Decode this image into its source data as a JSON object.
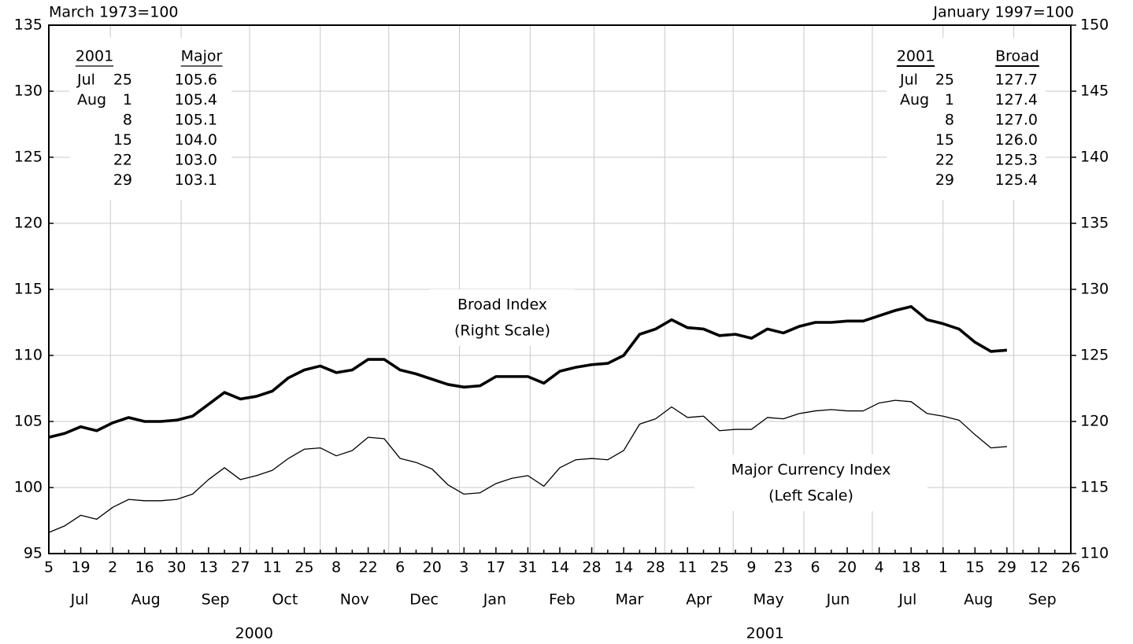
{
  "chart_data": {
    "type": "line",
    "y_unit_label": "March 1973=100",
    "y2_unit_label": "January 1997=100",
    "x": [
      "2000-07-05",
      "2000-07-12",
      "2000-07-19",
      "2000-07-26",
      "2000-08-02",
      "2000-08-09",
      "2000-08-16",
      "2000-08-23",
      "2000-08-30",
      "2000-09-06",
      "2000-09-13",
      "2000-09-20",
      "2000-09-27",
      "2000-10-04",
      "2000-10-11",
      "2000-10-18",
      "2000-10-25",
      "2000-11-01",
      "2000-11-08",
      "2000-11-15",
      "2000-11-22",
      "2000-11-29",
      "2000-12-06",
      "2000-12-13",
      "2000-12-20",
      "2000-12-27",
      "2001-01-03",
      "2001-01-10",
      "2001-01-17",
      "2001-01-24",
      "2001-01-31",
      "2001-02-07",
      "2001-02-14",
      "2001-02-21",
      "2001-02-28",
      "2001-03-07",
      "2001-03-14",
      "2001-03-21",
      "2001-03-28",
      "2001-04-04",
      "2001-04-11",
      "2001-04-18",
      "2001-04-25",
      "2001-05-02",
      "2001-05-09",
      "2001-05-16",
      "2001-05-23",
      "2001-05-30",
      "2001-06-06",
      "2001-06-13",
      "2001-06-20",
      "2001-06-27",
      "2001-07-04",
      "2001-07-11",
      "2001-07-18",
      "2001-07-25",
      "2001-08-01",
      "2001-08-08",
      "2001-08-15",
      "2001-08-22",
      "2001-08-29"
    ],
    "series": [
      {
        "name": "Major Currency Index",
        "axis": "y",
        "color": "#000000",
        "values": [
          96.6,
          97.1,
          97.9,
          97.6,
          98.5,
          99.1,
          99.0,
          99.0,
          99.1,
          99.5,
          100.6,
          101.5,
          100.6,
          100.9,
          101.3,
          102.2,
          102.9,
          103.0,
          102.4,
          102.8,
          103.8,
          103.7,
          102.2,
          101.9,
          101.4,
          100.2,
          99.5,
          99.6,
          100.3,
          100.7,
          100.9,
          100.1,
          101.5,
          102.1,
          102.2,
          102.1,
          102.8,
          104.8,
          105.2,
          106.1,
          105.3,
          105.4,
          104.3,
          104.4,
          104.4,
          105.3,
          105.2,
          105.6,
          105.8,
          105.9,
          105.8,
          105.8,
          106.4,
          106.6,
          106.5,
          105.6,
          105.4,
          105.1,
          104.0,
          103.0,
          103.1
        ]
      },
      {
        "name": "Broad Index",
        "axis": "y2",
        "color": "#000000",
        "values": [
          118.8,
          119.1,
          119.6,
          119.3,
          119.9,
          120.3,
          120.0,
          120.0,
          120.1,
          120.4,
          121.3,
          122.2,
          121.7,
          121.9,
          122.3,
          123.3,
          123.9,
          124.2,
          123.7,
          123.9,
          124.7,
          124.7,
          123.9,
          123.6,
          123.2,
          122.8,
          122.6,
          122.7,
          123.4,
          123.4,
          123.4,
          122.9,
          123.8,
          124.1,
          124.3,
          124.4,
          125.0,
          126.6,
          127.0,
          127.7,
          127.1,
          127.0,
          126.5,
          126.6,
          126.3,
          127.0,
          126.7,
          127.2,
          127.5,
          127.5,
          127.6,
          127.6,
          128.0,
          128.4,
          128.7,
          127.7,
          127.4,
          127.0,
          126.0,
          125.3,
          125.4
        ]
      }
    ],
    "annotations": [
      "Broad Index",
      "(Right Scale)",
      "Major Currency Index",
      "(Left Scale)"
    ],
    "xlim": [
      "2000-07-05",
      "2001-09-26"
    ],
    "xticks": [
      {
        "value": "2000-07-05",
        "label": "5"
      },
      {
        "value": "2000-07-19",
        "label": "19"
      },
      {
        "value": "2000-08-02",
        "label": "2"
      },
      {
        "value": "2000-08-16",
        "label": "16"
      },
      {
        "value": "2000-08-30",
        "label": "30"
      },
      {
        "value": "2000-09-13",
        "label": "13"
      },
      {
        "value": "2000-09-27",
        "label": "27"
      },
      {
        "value": "2000-10-11",
        "label": "11"
      },
      {
        "value": "2000-10-25",
        "label": "25"
      },
      {
        "value": "2000-11-08",
        "label": "8"
      },
      {
        "value": "2000-11-22",
        "label": "22"
      },
      {
        "value": "2000-12-06",
        "label": "6"
      },
      {
        "value": "2000-12-20",
        "label": "20"
      },
      {
        "value": "2001-01-03",
        "label": "3"
      },
      {
        "value": "2001-01-17",
        "label": "17"
      },
      {
        "value": "2001-01-31",
        "label": "31"
      },
      {
        "value": "2001-02-14",
        "label": "14"
      },
      {
        "value": "2001-02-28",
        "label": "28"
      },
      {
        "value": "2001-03-14",
        "label": "14"
      },
      {
        "value": "2001-03-28",
        "label": "28"
      },
      {
        "value": "2001-04-11",
        "label": "11"
      },
      {
        "value": "2001-04-25",
        "label": "25"
      },
      {
        "value": "2001-05-09",
        "label": "9"
      },
      {
        "value": "2001-05-23",
        "label": "23"
      },
      {
        "value": "2001-06-06",
        "label": "6"
      },
      {
        "value": "2001-06-20",
        "label": "20"
      },
      {
        "value": "2001-07-04",
        "label": "4"
      },
      {
        "value": "2001-07-18",
        "label": "18"
      },
      {
        "value": "2001-08-01",
        "label": "1"
      },
      {
        "value": "2001-08-15",
        "label": "15"
      },
      {
        "value": "2001-08-29",
        "label": "29"
      },
      {
        "value": "2001-09-12",
        "label": "12"
      },
      {
        "value": "2001-09-26",
        "label": "26"
      }
    ],
    "months": [
      {
        "value": "2000-07",
        "label": "Jul"
      },
      {
        "value": "2000-08",
        "label": "Aug"
      },
      {
        "value": "2000-09",
        "label": "Sep"
      },
      {
        "value": "2000-10",
        "label": "Oct"
      },
      {
        "value": "2000-11",
        "label": "Nov"
      },
      {
        "value": "2000-12",
        "label": "Dec"
      },
      {
        "value": "2001-01",
        "label": "Jan"
      },
      {
        "value": "2001-02",
        "label": "Feb"
      },
      {
        "value": "2001-03",
        "label": "Mar"
      },
      {
        "value": "2001-04",
        "label": "Apr"
      },
      {
        "value": "2001-05",
        "label": "May"
      },
      {
        "value": "2001-06",
        "label": "Jun"
      },
      {
        "value": "2001-07",
        "label": "Jul"
      },
      {
        "value": "2001-08",
        "label": "Aug"
      },
      {
        "value": "2001-09",
        "label": "Sep"
      }
    ],
    "years": [
      "2000",
      "2001"
    ],
    "ylim": [
      95,
      135
    ],
    "yticks": [
      95,
      100,
      105,
      110,
      115,
      120,
      125,
      130,
      135
    ],
    "y2lim": [
      110,
      150
    ],
    "y2ticks": [
      110,
      115,
      120,
      125,
      130,
      135,
      140,
      145,
      150
    ],
    "grid": true,
    "tables": [
      {
        "header": [
          "2001",
          "Major"
        ],
        "rows": [
          {
            "month": "Jul",
            "day": "25",
            "value": "105.6"
          },
          {
            "month": "Aug",
            "day": "1",
            "value": "105.4"
          },
          {
            "day": "8",
            "value": "105.1"
          },
          {
            "day": "15",
            "value": "104.0"
          },
          {
            "day": "22",
            "value": "103.0"
          },
          {
            "day": "29",
            "value": "103.1"
          }
        ]
      },
      {
        "header": [
          "2001",
          "Broad"
        ],
        "rows": [
          {
            "month": "Jul",
            "day": "25",
            "value": "127.7"
          },
          {
            "month": "Aug",
            "day": "1",
            "value": "127.4"
          },
          {
            "day": "8",
            "value": "127.0"
          },
          {
            "day": "15",
            "value": "126.0"
          },
          {
            "day": "22",
            "value": "125.3"
          },
          {
            "day": "29",
            "value": "125.4"
          }
        ]
      }
    ]
  }
}
